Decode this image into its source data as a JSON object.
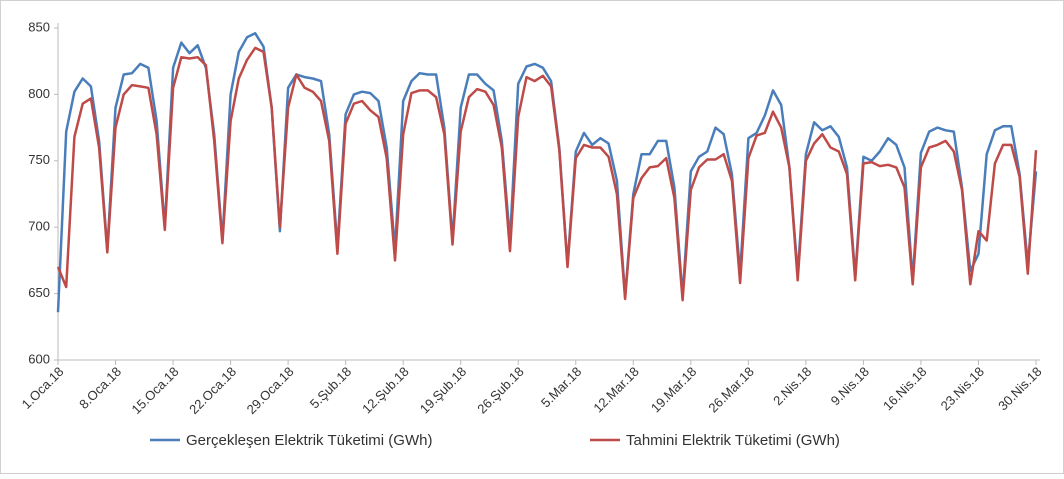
{
  "chart_data": {
    "type": "line",
    "categories": [
      "1.Oca.18",
      null,
      null,
      null,
      null,
      null,
      null,
      "8.Oca.18",
      null,
      null,
      null,
      null,
      null,
      null,
      "15.Oca.18",
      null,
      null,
      null,
      null,
      null,
      null,
      "22.Oca.18",
      null,
      null,
      null,
      null,
      null,
      null,
      "29.Oca.18",
      null,
      null,
      null,
      null,
      null,
      null,
      "5.Şub.18",
      null,
      null,
      null,
      null,
      null,
      null,
      "12.Şub.18",
      null,
      null,
      null,
      null,
      null,
      null,
      "19.Şub.18",
      null,
      null,
      null,
      null,
      null,
      null,
      "26.Şub.18",
      null,
      null,
      null,
      null,
      null,
      null,
      "5.Mar.18",
      null,
      null,
      null,
      null,
      null,
      null,
      "12.Mar.18",
      null,
      null,
      null,
      null,
      null,
      null,
      "19.Mar.18",
      null,
      null,
      null,
      null,
      null,
      null,
      "26.Mar.18",
      null,
      null,
      null,
      null,
      null,
      null,
      "2.Nis.18",
      null,
      null,
      null,
      null,
      null,
      null,
      "9.Nis.18",
      null,
      null,
      null,
      null,
      null,
      null,
      "16.Nis.18",
      null,
      null,
      null,
      null,
      null,
      null,
      "23.Nis.18",
      null,
      null,
      null,
      null,
      null,
      null,
      "30.Nis.18"
    ],
    "series": [
      {
        "name": "Gerçekleşen Elektrik Tüketimi (GWh)",
        "color": "#4a7ebb",
        "values": [
          636,
          772,
          802,
          812,
          806,
          765,
          683,
          790,
          815,
          816,
          823,
          820,
          780,
          700,
          820,
          839,
          831,
          837,
          820,
          770,
          690,
          800,
          832,
          843,
          846,
          836,
          790,
          697,
          805,
          815,
          813,
          812,
          810,
          770,
          685,
          785,
          800,
          802,
          801,
          795,
          760,
          683,
          795,
          810,
          816,
          815,
          815,
          775,
          690,
          790,
          815,
          815,
          808,
          803,
          765,
          690,
          808,
          821,
          823,
          820,
          810,
          760,
          672,
          757,
          771,
          762,
          767,
          763,
          735,
          648,
          725,
          755,
          755,
          765,
          765,
          730,
          648,
          742,
          753,
          757,
          775,
          770,
          740,
          665,
          767,
          771,
          784,
          803,
          792,
          745,
          665,
          755,
          779,
          773,
          776,
          768,
          745,
          663,
          753,
          750,
          757,
          767,
          762,
          745,
          660,
          756,
          772,
          775,
          773,
          772,
          730,
          667,
          680,
          755,
          773,
          776,
          776,
          740,
          672,
          742
        ]
      },
      {
        "name": "Tahmini Elektrik Tüketimi (GWh)",
        "color": "#be4b48",
        "values": [
          670,
          655,
          768,
          793,
          797,
          760,
          681,
          775,
          800,
          807,
          806,
          805,
          770,
          698,
          805,
          828,
          827,
          828,
          822,
          765,
          688,
          780,
          812,
          826,
          835,
          832,
          790,
          700,
          790,
          815,
          805,
          802,
          795,
          765,
          680,
          778,
          793,
          795,
          788,
          783,
          752,
          675,
          770,
          801,
          803,
          803,
          798,
          770,
          687,
          772,
          798,
          804,
          802,
          792,
          760,
          682,
          783,
          813,
          810,
          814,
          806,
          758,
          670,
          752,
          762,
          760,
          760,
          753,
          725,
          646,
          722,
          737,
          745,
          746,
          752,
          722,
          645,
          728,
          745,
          751,
          751,
          755,
          735,
          658,
          752,
          769,
          771,
          787,
          775,
          745,
          660,
          750,
          763,
          770,
          760,
          757,
          740,
          660,
          748,
          749,
          746,
          747,
          745,
          730,
          657,
          745,
          760,
          762,
          765,
          757,
          728,
          657,
          697,
          690,
          748,
          762,
          762,
          738,
          665,
          758
        ]
      }
    ],
    "ylim": [
      600,
      850
    ],
    "yticks": [
      600,
      650,
      700,
      750,
      800,
      850
    ],
    "grid": false,
    "legend": "bottom"
  }
}
